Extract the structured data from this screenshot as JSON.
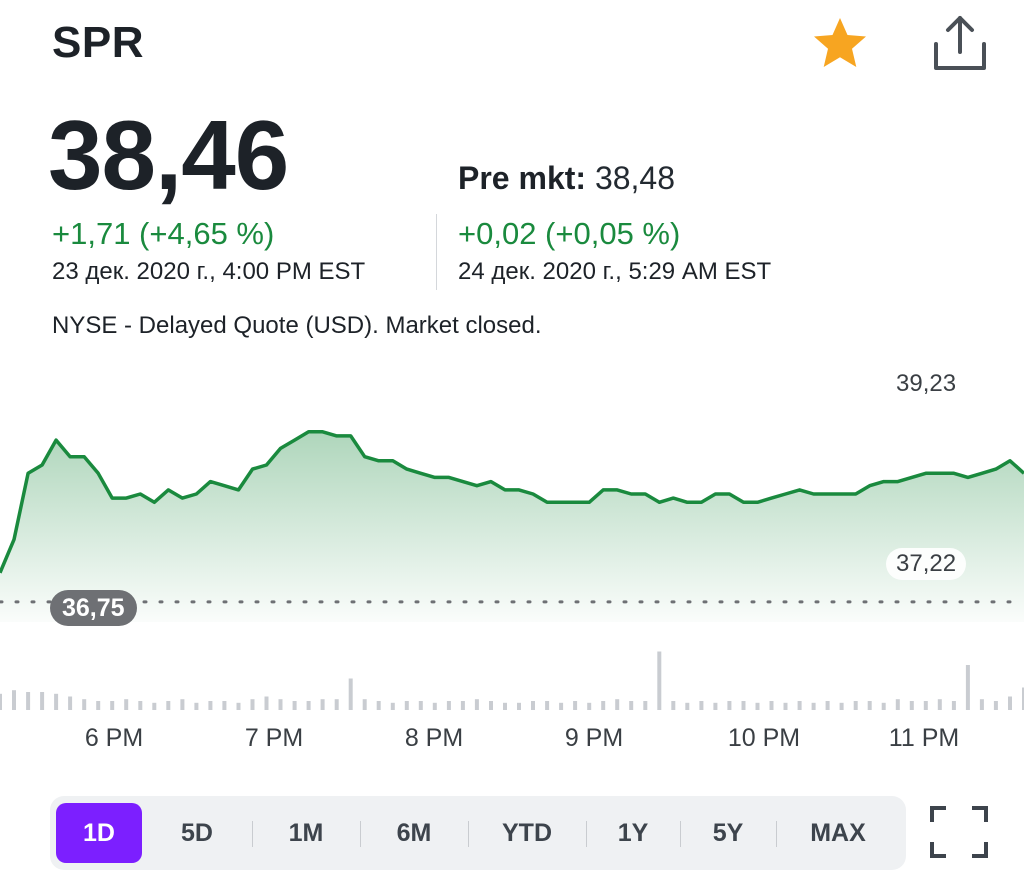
{
  "header": {
    "ticker": "SPR",
    "star_icon": "star-icon",
    "share_icon": "share-icon",
    "accent_star": "#f7a521"
  },
  "quote": {
    "price": "38,46",
    "change": "+1,71 (+4,65 %)",
    "date": "23 дек. 2020 г., 4:00 PM EST",
    "pre_label": "Pre mkt:",
    "pre_price": "38,48",
    "pre_change": "+0,02 (+0,05 %)",
    "pre_date": "24 дек. 2020 г., 5:29 AM EST",
    "note": "NYSE - Delayed Quote (USD). Market closed.",
    "up_color": "#1a8a3e"
  },
  "chart_data": {
    "type": "area",
    "high_label": "39,23",
    "low_label": "37,22",
    "previous_close_label": "36,75",
    "previous_close": 36.75,
    "ylim": [
      36.7,
      39.4
    ],
    "x_ticks": [
      "6 PM",
      "7 PM",
      "8 PM",
      "9 PM",
      "10 PM",
      "11 PM"
    ],
    "x": [
      "17:25",
      "17:30",
      "17:35",
      "17:40",
      "17:45",
      "17:50",
      "17:55",
      "18:00",
      "18:05",
      "18:10",
      "18:15",
      "18:20",
      "18:25",
      "18:30",
      "18:35",
      "18:40",
      "18:45",
      "18:50",
      "18:55",
      "19:00",
      "19:05",
      "19:10",
      "19:15",
      "19:20",
      "19:25",
      "19:30",
      "19:35",
      "19:40",
      "19:45",
      "19:50",
      "19:55",
      "20:00",
      "20:05",
      "20:10",
      "20:15",
      "20:20",
      "20:25",
      "20:30",
      "20:35",
      "20:40",
      "20:45",
      "20:50",
      "20:55",
      "21:00",
      "21:05",
      "21:10",
      "21:15",
      "21:20",
      "21:25",
      "21:30",
      "21:35",
      "21:40",
      "21:45",
      "21:50",
      "21:55",
      "22:00",
      "22:05",
      "22:10",
      "22:15",
      "22:20",
      "22:25",
      "22:30",
      "22:35",
      "22:40",
      "22:45",
      "22:50",
      "22:55",
      "23:00",
      "23:05",
      "23:10",
      "23:15",
      "23:20",
      "23:25",
      "23:30"
    ],
    "values": [
      37.1,
      37.5,
      38.3,
      38.4,
      38.7,
      38.5,
      38.5,
      38.3,
      38.0,
      38.0,
      38.05,
      37.95,
      38.1,
      38.0,
      38.05,
      38.2,
      38.15,
      38.1,
      38.35,
      38.4,
      38.6,
      38.7,
      38.8,
      38.8,
      38.75,
      38.75,
      38.5,
      38.45,
      38.45,
      38.35,
      38.3,
      38.25,
      38.25,
      38.2,
      38.15,
      38.2,
      38.1,
      38.1,
      38.05,
      37.95,
      37.95,
      37.95,
      37.95,
      38.1,
      38.1,
      38.05,
      38.05,
      37.95,
      38.0,
      37.95,
      37.95,
      38.05,
      38.05,
      37.95,
      37.95,
      38.0,
      38.05,
      38.1,
      38.05,
      38.05,
      38.05,
      38.05,
      38.15,
      38.2,
      38.2,
      38.25,
      38.3,
      38.3,
      38.3,
      38.25,
      38.3,
      38.35,
      38.45,
      38.3
    ],
    "volume": [
      0.18,
      0.22,
      0.2,
      0.2,
      0.18,
      0.15,
      0.12,
      0.1,
      0.1,
      0.12,
      0.1,
      0.08,
      0.1,
      0.12,
      0.08,
      0.1,
      0.1,
      0.08,
      0.12,
      0.15,
      0.12,
      0.1,
      0.1,
      0.12,
      0.12,
      0.35,
      0.12,
      0.1,
      0.08,
      0.1,
      0.1,
      0.08,
      0.1,
      0.1,
      0.12,
      0.1,
      0.08,
      0.08,
      0.1,
      0.1,
      0.08,
      0.1,
      0.08,
      0.1,
      0.12,
      0.1,
      0.1,
      0.65,
      0.1,
      0.08,
      0.1,
      0.08,
      0.1,
      0.1,
      0.08,
      0.1,
      0.08,
      0.1,
      0.08,
      0.1,
      0.08,
      0.1,
      0.1,
      0.08,
      0.12,
      0.1,
      0.1,
      0.12,
      0.1,
      0.5,
      0.12,
      0.1,
      0.15,
      0.25
    ],
    "line_color": "#1a8a3e",
    "grid": false
  },
  "ranges": {
    "items": [
      "1D",
      "5D",
      "1M",
      "6M",
      "YTD",
      "1Y",
      "5Y",
      "MAX"
    ],
    "active": "1D",
    "accent": "#7c1fff",
    "fullscreen_icon": "fullscreen-icon"
  }
}
